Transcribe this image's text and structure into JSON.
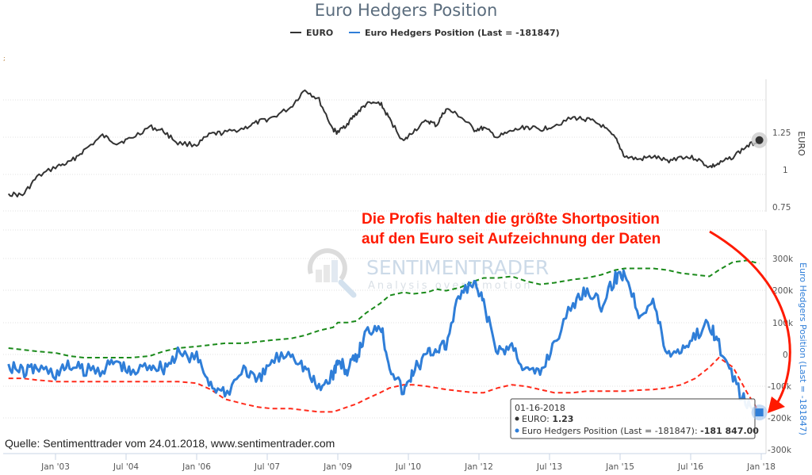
{
  "chart_data": [
    {
      "type": "line",
      "title": "Euro Hedgers Position",
      "panel": "top",
      "legend": [
        {
          "name": "EURO",
          "color": "#333333"
        },
        {
          "name": "Euro Hedgers Position (Last = -181847)",
          "color": "#2f7ed8"
        }
      ],
      "legend_placement": "top-center",
      "ylabel": "EURO",
      "ylim": [
        0.75,
        1.6
      ],
      "yticks": [
        0.75,
        1,
        1.25
      ],
      "ytick_labels": [
        "0.75",
        "1",
        "1.25"
      ],
      "grid": true,
      "x": [
        2002.0,
        2002.3,
        2002.6,
        2003.0,
        2003.3,
        2003.6,
        2004.0,
        2004.3,
        2004.6,
        2005.0,
        2005.3,
        2005.6,
        2006.0,
        2006.3,
        2006.6,
        2007.0,
        2007.3,
        2007.6,
        2008.0,
        2008.3,
        2008.6,
        2008.9,
        2009.0,
        2009.2,
        2009.4,
        2009.6,
        2009.9,
        2010.1,
        2010.4,
        2010.6,
        2010.9,
        2011.1,
        2011.3,
        2011.6,
        2011.9,
        2012.1,
        2012.4,
        2012.7,
        2013.0,
        2013.3,
        2013.6,
        2014.0,
        2014.3,
        2014.6,
        2014.9,
        2015.1,
        2015.4,
        2015.7,
        2016.0,
        2016.3,
        2016.6,
        2016.9,
        2017.1,
        2017.4,
        2017.7,
        2017.96
      ],
      "series": [
        {
          "name": "EURO",
          "values": [
            0.87,
            0.86,
            0.98,
            1.05,
            1.08,
            1.16,
            1.26,
            1.21,
            1.24,
            1.32,
            1.29,
            1.21,
            1.2,
            1.27,
            1.28,
            1.31,
            1.35,
            1.38,
            1.45,
            1.57,
            1.5,
            1.3,
            1.28,
            1.34,
            1.41,
            1.47,
            1.48,
            1.37,
            1.22,
            1.29,
            1.36,
            1.33,
            1.44,
            1.39,
            1.3,
            1.31,
            1.25,
            1.29,
            1.32,
            1.3,
            1.33,
            1.38,
            1.37,
            1.33,
            1.24,
            1.12,
            1.1,
            1.12,
            1.09,
            1.12,
            1.11,
            1.05,
            1.07,
            1.12,
            1.19,
            1.23
          ]
        }
      ],
      "highlight_point": {
        "x": "01-16-2018",
        "value": 1.23
      }
    },
    {
      "type": "line",
      "panel": "bottom",
      "ylabel": "Euro Hedgers Position (Last = -181847)",
      "ylim": [
        -300000,
        400000
      ],
      "yticks": [
        -300000,
        -200000,
        -100000,
        0,
        100000,
        200000,
        300000
      ],
      "ytick_labels": [
        "-300k",
        "-200k",
        "-100k",
        "0",
        "100k",
        "200k",
        "300k"
      ],
      "xticks": [
        "Jan '03",
        "Jul '04",
        "Jan '06",
        "Jul '07",
        "Jan '09",
        "Jul '10",
        "Jan '12",
        "Jul '13",
        "Jan '15",
        "Jul '16",
        "Jan '18"
      ],
      "grid": true,
      "x": [
        2002.0,
        2002.3,
        2002.6,
        2003.0,
        2003.3,
        2003.6,
        2004.0,
        2004.3,
        2004.6,
        2005.0,
        2005.3,
        2005.6,
        2006.0,
        2006.3,
        2006.6,
        2007.0,
        2007.3,
        2007.6,
        2008.0,
        2008.3,
        2008.6,
        2008.9,
        2009.0,
        2009.2,
        2009.4,
        2009.6,
        2009.9,
        2010.1,
        2010.4,
        2010.6,
        2010.9,
        2011.1,
        2011.3,
        2011.6,
        2011.9,
        2012.1,
        2012.4,
        2012.7,
        2013.0,
        2013.3,
        2013.6,
        2014.0,
        2014.3,
        2014.6,
        2014.9,
        2015.1,
        2015.4,
        2015.7,
        2016.0,
        2016.3,
        2016.6,
        2016.9,
        2017.1,
        2017.4,
        2017.7,
        2017.96
      ],
      "series": [
        {
          "name": "Euro Hedgers Position (Last = -181847)",
          "color": "#2f7ed8",
          "values": [
            -30000,
            -55000,
            -40000,
            -60000,
            -35000,
            -50000,
            -45000,
            -20000,
            -60000,
            -30000,
            -40000,
            0,
            -10000,
            -90000,
            -130000,
            -40000,
            -90000,
            -20000,
            10000,
            -40000,
            -110000,
            -60000,
            -20000,
            -50000,
            -10000,
            70000,
            100000,
            -30000,
            -120000,
            -50000,
            0,
            20000,
            30000,
            190000,
            220000,
            160000,
            0,
            30000,
            -50000,
            -60000,
            40000,
            160000,
            210000,
            150000,
            240000,
            260000,
            130000,
            170000,
            0,
            20000,
            60000,
            100000,
            30000,
            -80000,
            -160000,
            -181847
          ]
        },
        {
          "name": "Upper band",
          "color": "#1a8a1a",
          "dashed": true,
          "values": [
            20000,
            15000,
            10000,
            5000,
            -5000,
            -10000,
            -10000,
            -10000,
            -10000,
            -5000,
            10000,
            20000,
            25000,
            30000,
            35000,
            35000,
            40000,
            45000,
            50000,
            60000,
            75000,
            85000,
            100000,
            100000,
            105000,
            130000,
            160000,
            185000,
            195000,
            190000,
            195000,
            205000,
            200000,
            210000,
            230000,
            240000,
            240000,
            245000,
            230000,
            220000,
            225000,
            235000,
            240000,
            250000,
            265000,
            270000,
            270000,
            270000,
            265000,
            255000,
            250000,
            245000,
            265000,
            290000,
            295000,
            285000
          ]
        },
        {
          "name": "Lower band",
          "color": "#ff2a1a",
          "dashed": true,
          "values": [
            -75000,
            -75000,
            -80000,
            -85000,
            -85000,
            -85000,
            -85000,
            -85000,
            -85000,
            -85000,
            -85000,
            -85000,
            -90000,
            -110000,
            -140000,
            -155000,
            -165000,
            -170000,
            -170000,
            -175000,
            -180000,
            -180000,
            -175000,
            -165000,
            -155000,
            -140000,
            -120000,
            -105000,
            -95000,
            -95000,
            -100000,
            -105000,
            -110000,
            -115000,
            -120000,
            -120000,
            -105000,
            -95000,
            -100000,
            -110000,
            -120000,
            -120000,
            -115000,
            -115000,
            -115000,
            -115000,
            -112000,
            -110000,
            -105000,
            -95000,
            -75000,
            -40000,
            -10000,
            -40000,
            -120000,
            -181847
          ]
        }
      ]
    }
  ],
  "header": {
    "title": "Euro Hedgers Position",
    "legend_euro": "EURO",
    "legend_hedgers": "Euro Hedgers Position (Last = -181847)"
  },
  "top_axis": {
    "title": "EURO",
    "labels": [
      "1.25",
      "1",
      "0.75"
    ]
  },
  "bottom_axis": {
    "title": "Euro Hedgers Position (Last = -181847)",
    "labels": [
      "300k",
      "200k",
      "100k",
      "0",
      "-100k",
      "-200k",
      "-300k"
    ]
  },
  "x_axis": {
    "labels": [
      "Jan '03",
      "Jul '04",
      "Jan '06",
      "Jul '07",
      "Jan '09",
      "Jul '10",
      "Jan '12",
      "Jul '13",
      "Jan '15",
      "Jul '16",
      "Jan '18"
    ]
  },
  "annotation": {
    "line1": "Die Profis halten die größte Shortposition",
    "line2": "auf den Euro seit Aufzeichnung der Daten"
  },
  "watermark": {
    "brand": "SENTIMENTRADER",
    "tagline": "Analysis over Emotion"
  },
  "tooltip": {
    "date": "01-16-2018",
    "euro_label": "EURO: ",
    "euro_value": "1.23",
    "hedgers_label": "Euro Hedgers Position (Last = -181847): ",
    "hedgers_value": "-181 847.00"
  },
  "source": "Quelle: Sentimenttrader vom 24.01.2018, www.sentimentrader.com",
  "colors": {
    "euro": "#333333",
    "hedgers": "#2f7ed8",
    "upper": "#1a8a1a",
    "lower": "#ff2a1a",
    "annotation": "#ff1a00"
  }
}
